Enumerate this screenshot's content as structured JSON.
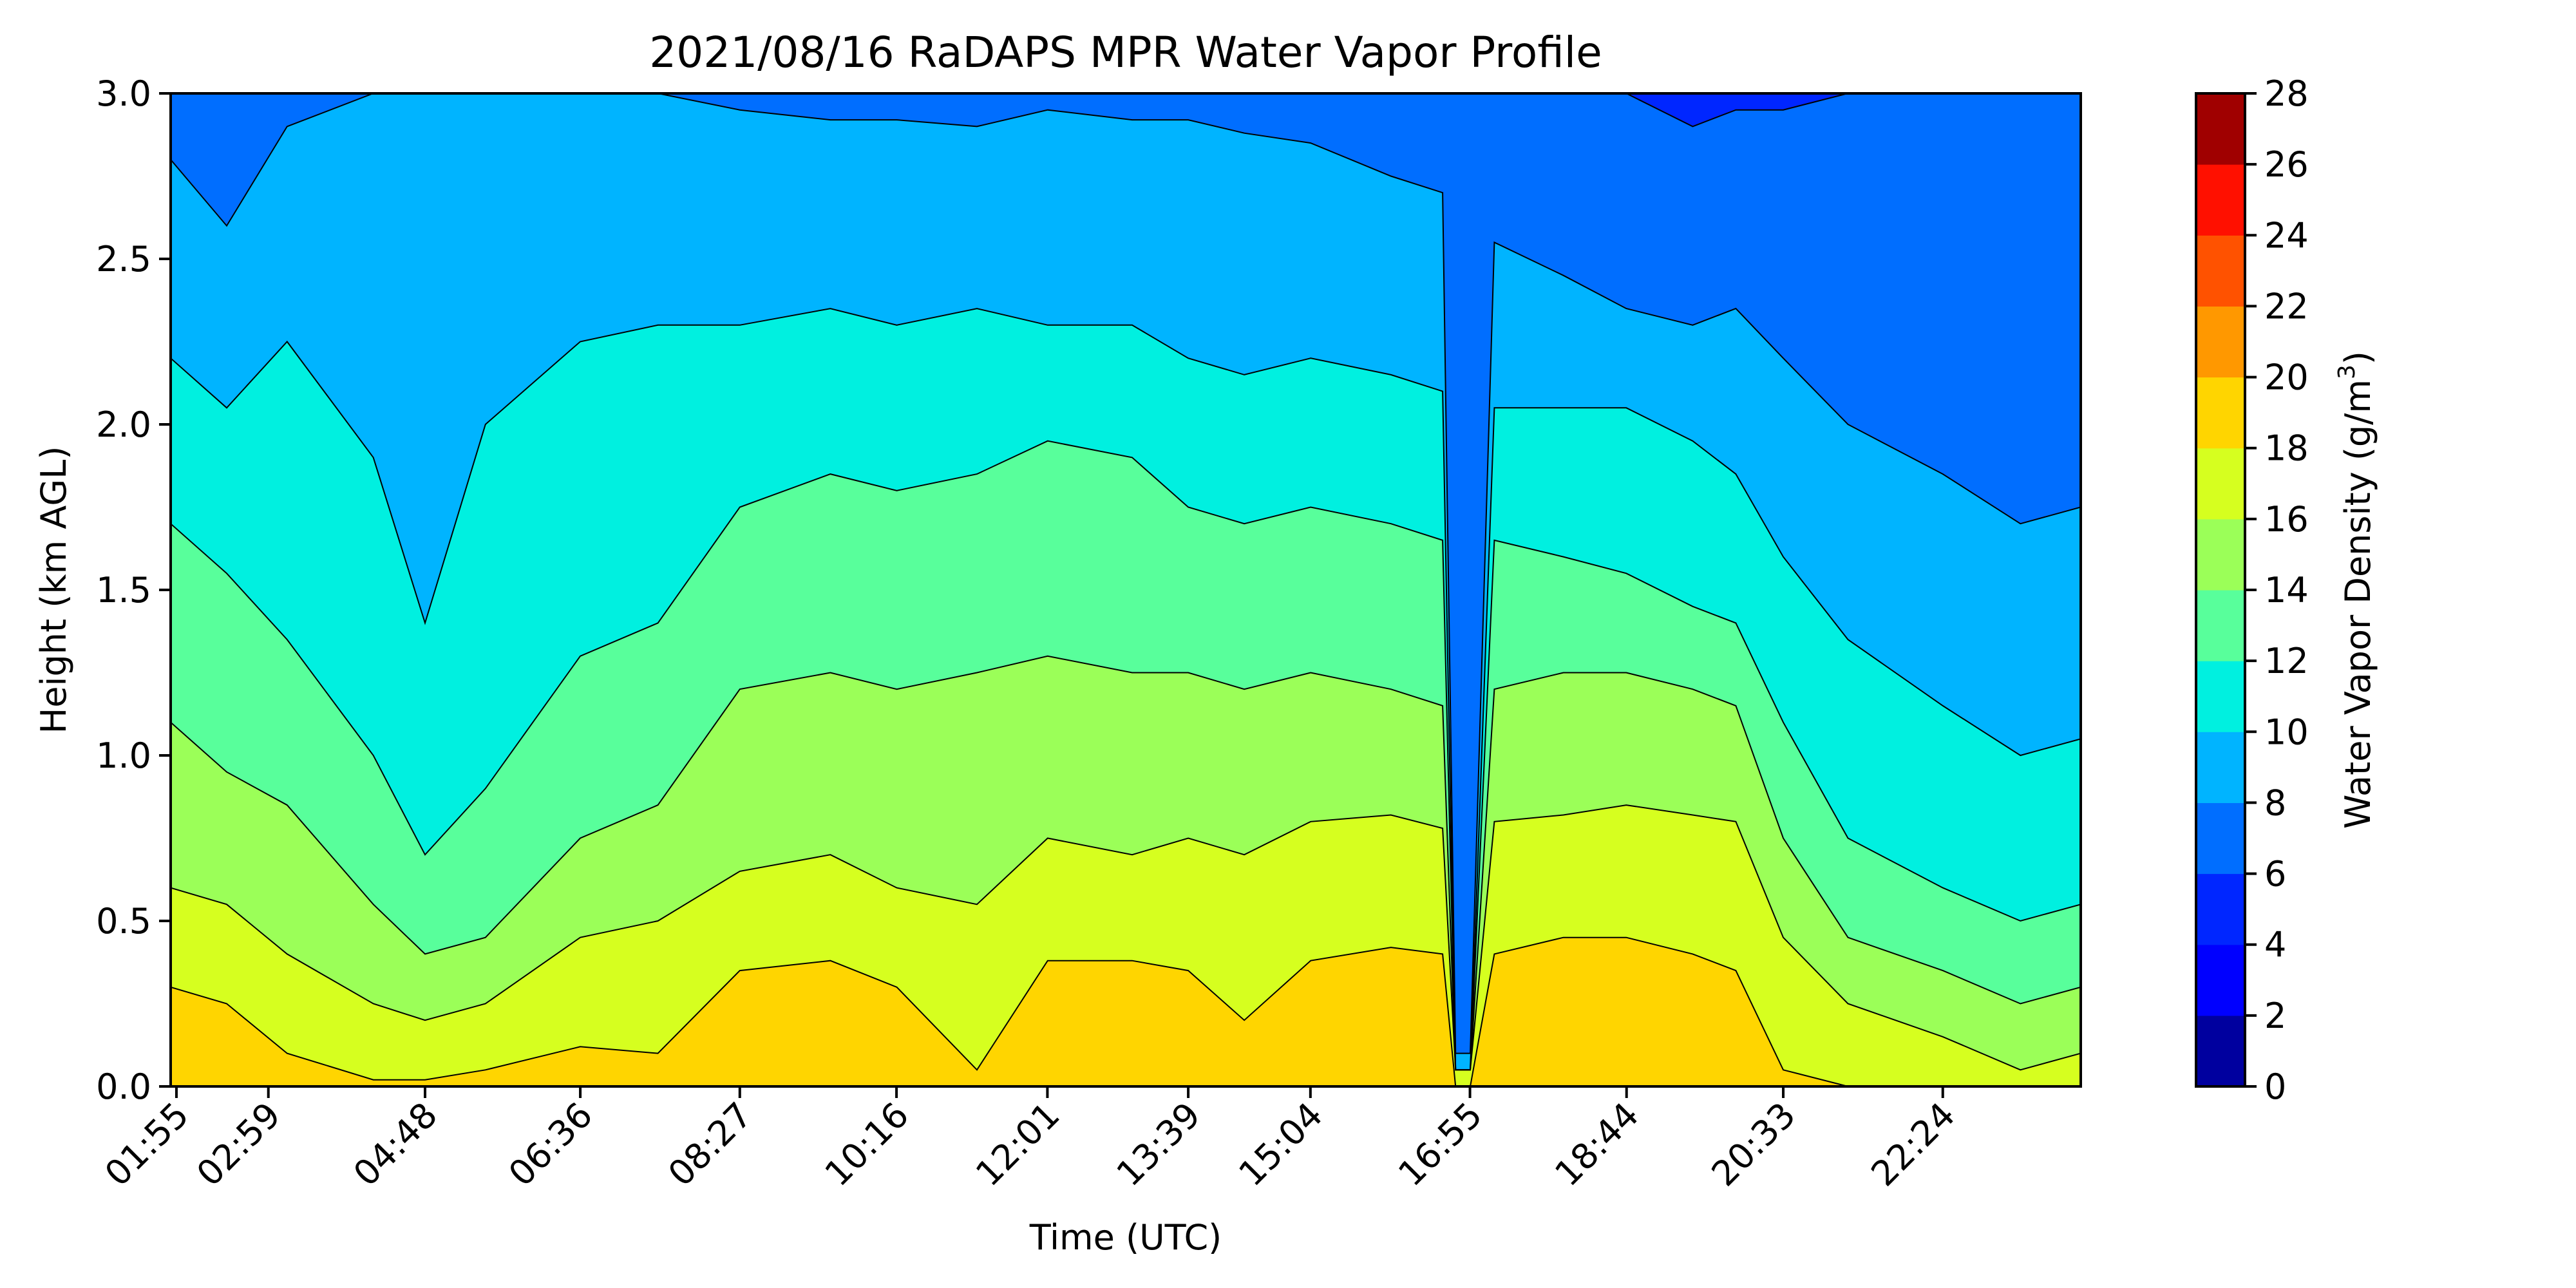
{
  "chart_data": {
    "type": "heatmap",
    "subtype": "filled-contour",
    "title": "2021/08/16 RaDAPS MPR Water Vapor Profile",
    "xlabel": "Time (UTC)",
    "ylabel": "Height (km AGL)",
    "x_tick_labels": [
      "01:55",
      "02:59",
      "04:48",
      "06:36",
      "08:27",
      "10:16",
      "12:01",
      "13:39",
      "15:04",
      "16:55",
      "18:44",
      "20:33",
      "22:24"
    ],
    "x_tick_hours": [
      1.917,
      2.983,
      4.8,
      6.6,
      8.45,
      10.267,
      12.017,
      13.65,
      15.067,
      16.917,
      18.733,
      20.55,
      22.4
    ],
    "x_range_hours": [
      1.85,
      24.0
    ],
    "y_ticks": [
      0.0,
      0.5,
      1.0,
      1.5,
      2.0,
      2.5,
      3.0
    ],
    "y_tick_labels": [
      "0.0",
      "0.5",
      "1.0",
      "1.5",
      "2.0",
      "2.5",
      "3.0"
    ],
    "ylim": [
      0.0,
      3.0
    ],
    "colorbar": {
      "label": "Water Vapor Density (g/m",
      "label_superscript": "3",
      "label_suffix": ")",
      "ticks": [
        0,
        2,
        4,
        6,
        8,
        10,
        12,
        14,
        16,
        18,
        20,
        22,
        24,
        26,
        28
      ],
      "tick_labels": [
        "0",
        "2",
        "4",
        "6",
        "8",
        "10",
        "12",
        "14",
        "16",
        "18",
        "20",
        "22",
        "24",
        "26",
        "28"
      ],
      "levels": [
        0,
        2,
        4,
        6,
        8,
        10,
        12,
        14,
        16,
        18,
        20,
        22,
        24,
        26,
        28
      ],
      "colors": [
        "#00009f",
        "#0000ff",
        "#0026ff",
        "#006eff",
        "#00b4ff",
        "#00f0e0",
        "#58ff9b",
        "#9bff58",
        "#d6ff1f",
        "#ffd500",
        "#ff9800",
        "#ff5200",
        "#ff1000",
        "#a00000"
      ]
    },
    "contours": {
      "sample_hours": [
        1.85,
        2.5,
        3.2,
        4.2,
        4.8,
        5.5,
        6.6,
        7.5,
        8.45,
        9.5,
        10.27,
        11.2,
        12.02,
        13.0,
        13.65,
        14.3,
        15.07,
        16.0,
        16.6,
        16.75,
        16.92,
        17.2,
        18.0,
        18.73,
        19.5,
        20.0,
        20.55,
        21.3,
        22.4,
        23.3,
        24.0
      ],
      "c18_km": [
        0.3,
        0.25,
        0.1,
        0.02,
        0.02,
        0.05,
        0.12,
        0.1,
        0.35,
        0.38,
        0.3,
        0.05,
        0.38,
        0.38,
        0.35,
        0.2,
        0.38,
        0.42,
        0.4,
        0.0,
        0.0,
        0.4,
        0.45,
        0.45,
        0.4,
        0.35,
        0.05,
        0.0,
        0.0,
        0.0,
        0.0
      ],
      "c16_km": [
        0.6,
        0.55,
        0.4,
        0.25,
        0.2,
        0.25,
        0.45,
        0.5,
        0.65,
        0.7,
        0.6,
        0.55,
        0.75,
        0.7,
        0.75,
        0.7,
        0.8,
        0.82,
        0.78,
        0.05,
        0.05,
        0.8,
        0.82,
        0.85,
        0.82,
        0.8,
        0.45,
        0.25,
        0.15,
        0.05,
        0.1
      ],
      "c14_km": [
        1.1,
        0.95,
        0.85,
        0.55,
        0.4,
        0.45,
        0.75,
        0.85,
        1.2,
        1.25,
        1.2,
        1.25,
        1.3,
        1.25,
        1.25,
        1.2,
        1.25,
        1.2,
        1.15,
        0.05,
        0.05,
        1.2,
        1.25,
        1.25,
        1.2,
        1.15,
        0.75,
        0.45,
        0.35,
        0.25,
        0.3
      ],
      "c12_km": [
        1.7,
        1.55,
        1.35,
        1.0,
        0.7,
        0.9,
        1.3,
        1.4,
        1.75,
        1.85,
        1.8,
        1.85,
        1.95,
        1.9,
        1.75,
        1.7,
        1.75,
        1.7,
        1.65,
        0.05,
        0.05,
        1.65,
        1.6,
        1.55,
        1.45,
        1.4,
        1.1,
        0.75,
        0.6,
        0.5,
        0.55
      ],
      "c10_km": [
        2.2,
        2.05,
        2.25,
        1.9,
        1.4,
        2.0,
        2.25,
        2.3,
        2.3,
        2.35,
        2.3,
        2.35,
        2.3,
        2.3,
        2.2,
        2.15,
        2.2,
        2.15,
        2.1,
        0.05,
        0.05,
        2.05,
        2.05,
        2.05,
        1.95,
        1.85,
        1.6,
        1.35,
        1.15,
        1.0,
        1.05
      ],
      "c8_km": [
        2.8,
        2.6,
        2.9,
        3.0,
        3.0,
        3.0,
        3.0,
        3.0,
        2.95,
        2.92,
        2.92,
        2.9,
        2.95,
        2.92,
        2.92,
        2.88,
        2.85,
        2.75,
        2.7,
        0.1,
        0.1,
        2.55,
        2.45,
        2.35,
        2.3,
        2.35,
        2.2,
        2.0,
        1.85,
        1.7,
        1.75
      ],
      "c6_km": [
        3.0,
        3.0,
        3.0,
        3.0,
        3.0,
        3.0,
        3.0,
        3.0,
        3.0,
        3.0,
        3.0,
        3.0,
        3.0,
        3.0,
        3.0,
        3.0,
        3.0,
        3.0,
        3.0,
        3.0,
        3.0,
        3.0,
        3.0,
        3.0,
        2.9,
        2.95,
        2.95,
        3.0,
        3.0,
        3.0,
        3.0
      ]
    }
  }
}
